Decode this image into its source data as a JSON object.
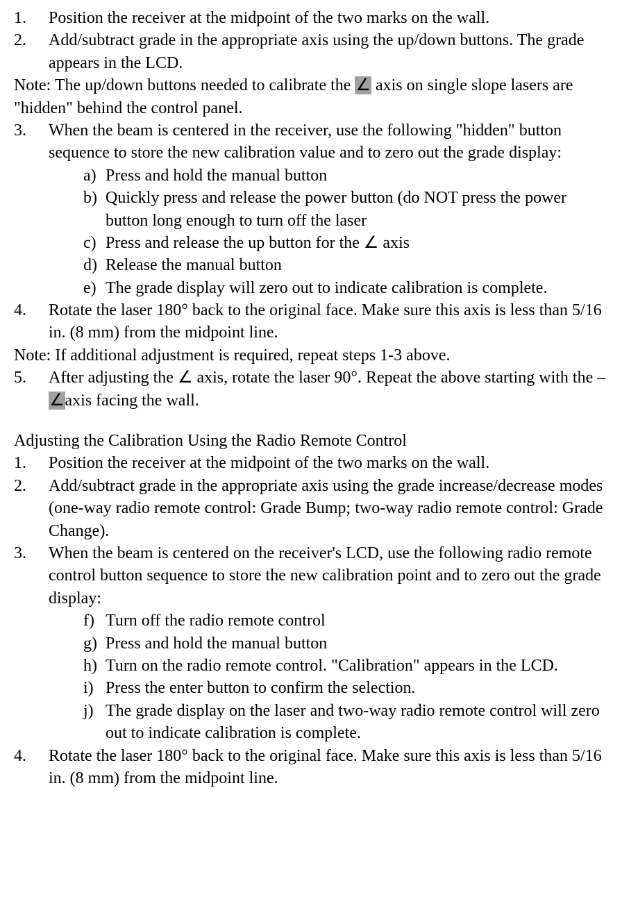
{
  "list1": {
    "item1": {
      "num": "1.",
      "text": "Position the receiver at the midpoint of the two marks on the wall."
    },
    "item2": {
      "num": "2.",
      "text": "Add/subtract grade in the appropriate axis using the up/down buttons. The grade appears in the LCD."
    },
    "note1_a": "Note: The up/down buttons needed to calibrate the ",
    "note1_angle": "∠",
    "note1_b": " axis on single slope lasers are \"hidden\" behind the control panel.",
    "item3": {
      "num": "3.",
      "text": "When the beam is centered in the receiver, use the following \"hidden\" button sequence to store the new calibration value and to zero out the grade display:"
    },
    "sub3": {
      "a": {
        "letter": "a)",
        "text": "Press and hold the manual button"
      },
      "b": {
        "letter": "b)",
        "text": "Quickly press and release the power button (do NOT press the power button long enough to turn off the laser"
      },
      "c": {
        "letter": "c)",
        "text": "Press and release the up button for the ∠ axis"
      },
      "d": {
        "letter": "d)",
        "text": "Release the manual button"
      },
      "e": {
        "letter": "e)",
        "text": "The grade display will zero out to indicate calibration is complete."
      }
    },
    "item4": {
      "num": "4.",
      "text": "Rotate the laser 180° back to the original face. Make sure this axis is less than 5/16 in. (8 mm) from the midpoint line."
    },
    "note2": "Note: If additional adjustment is required, repeat steps 1-3 above.",
    "item5": {
      "num": "5.",
      "text_a": "After adjusting the ∠ axis, rotate the laser 90°. Repeat the above starting with the –",
      "angle": "∠",
      "text_b": "axis facing the wall."
    }
  },
  "section2": {
    "title": "Adjusting the Calibration Using the Radio Remote Control",
    "item1": {
      "num": "1.",
      "text": "Position the receiver at the midpoint of the two marks on the wall."
    },
    "item2": {
      "num": "2.",
      "text": "Add/subtract grade in the appropriate axis using the grade increase/decrease modes (one-way radio remote control: Grade Bump; two-way radio remote control: Grade Change)."
    },
    "item3": {
      "num": "3.",
      "text": "When the beam is centered on the receiver's LCD, use the following radio remote control button sequence to store the new calibration point and to zero out the grade display:"
    },
    "sub3": {
      "f": {
        "letter": "f)",
        "text": "Turn off the radio remote control"
      },
      "g": {
        "letter": "g)",
        "text": "Press and hold the manual button"
      },
      "h": {
        "letter": "h)",
        "text": "Turn on the radio remote control. \"Calibration\" appears in the LCD."
      },
      "i": {
        "letter": "i)",
        "text": "Press the enter button to confirm the selection."
      },
      "j": {
        "letter": "j)",
        "text": "The grade display on the laser and two-way radio remote control will zero out to indicate calibration is complete."
      }
    },
    "item4": {
      "num": "4.",
      "text": "Rotate the laser 180° back to the original face. Make sure this axis is less than 5/16 in. (8 mm) from the midpoint line."
    }
  }
}
